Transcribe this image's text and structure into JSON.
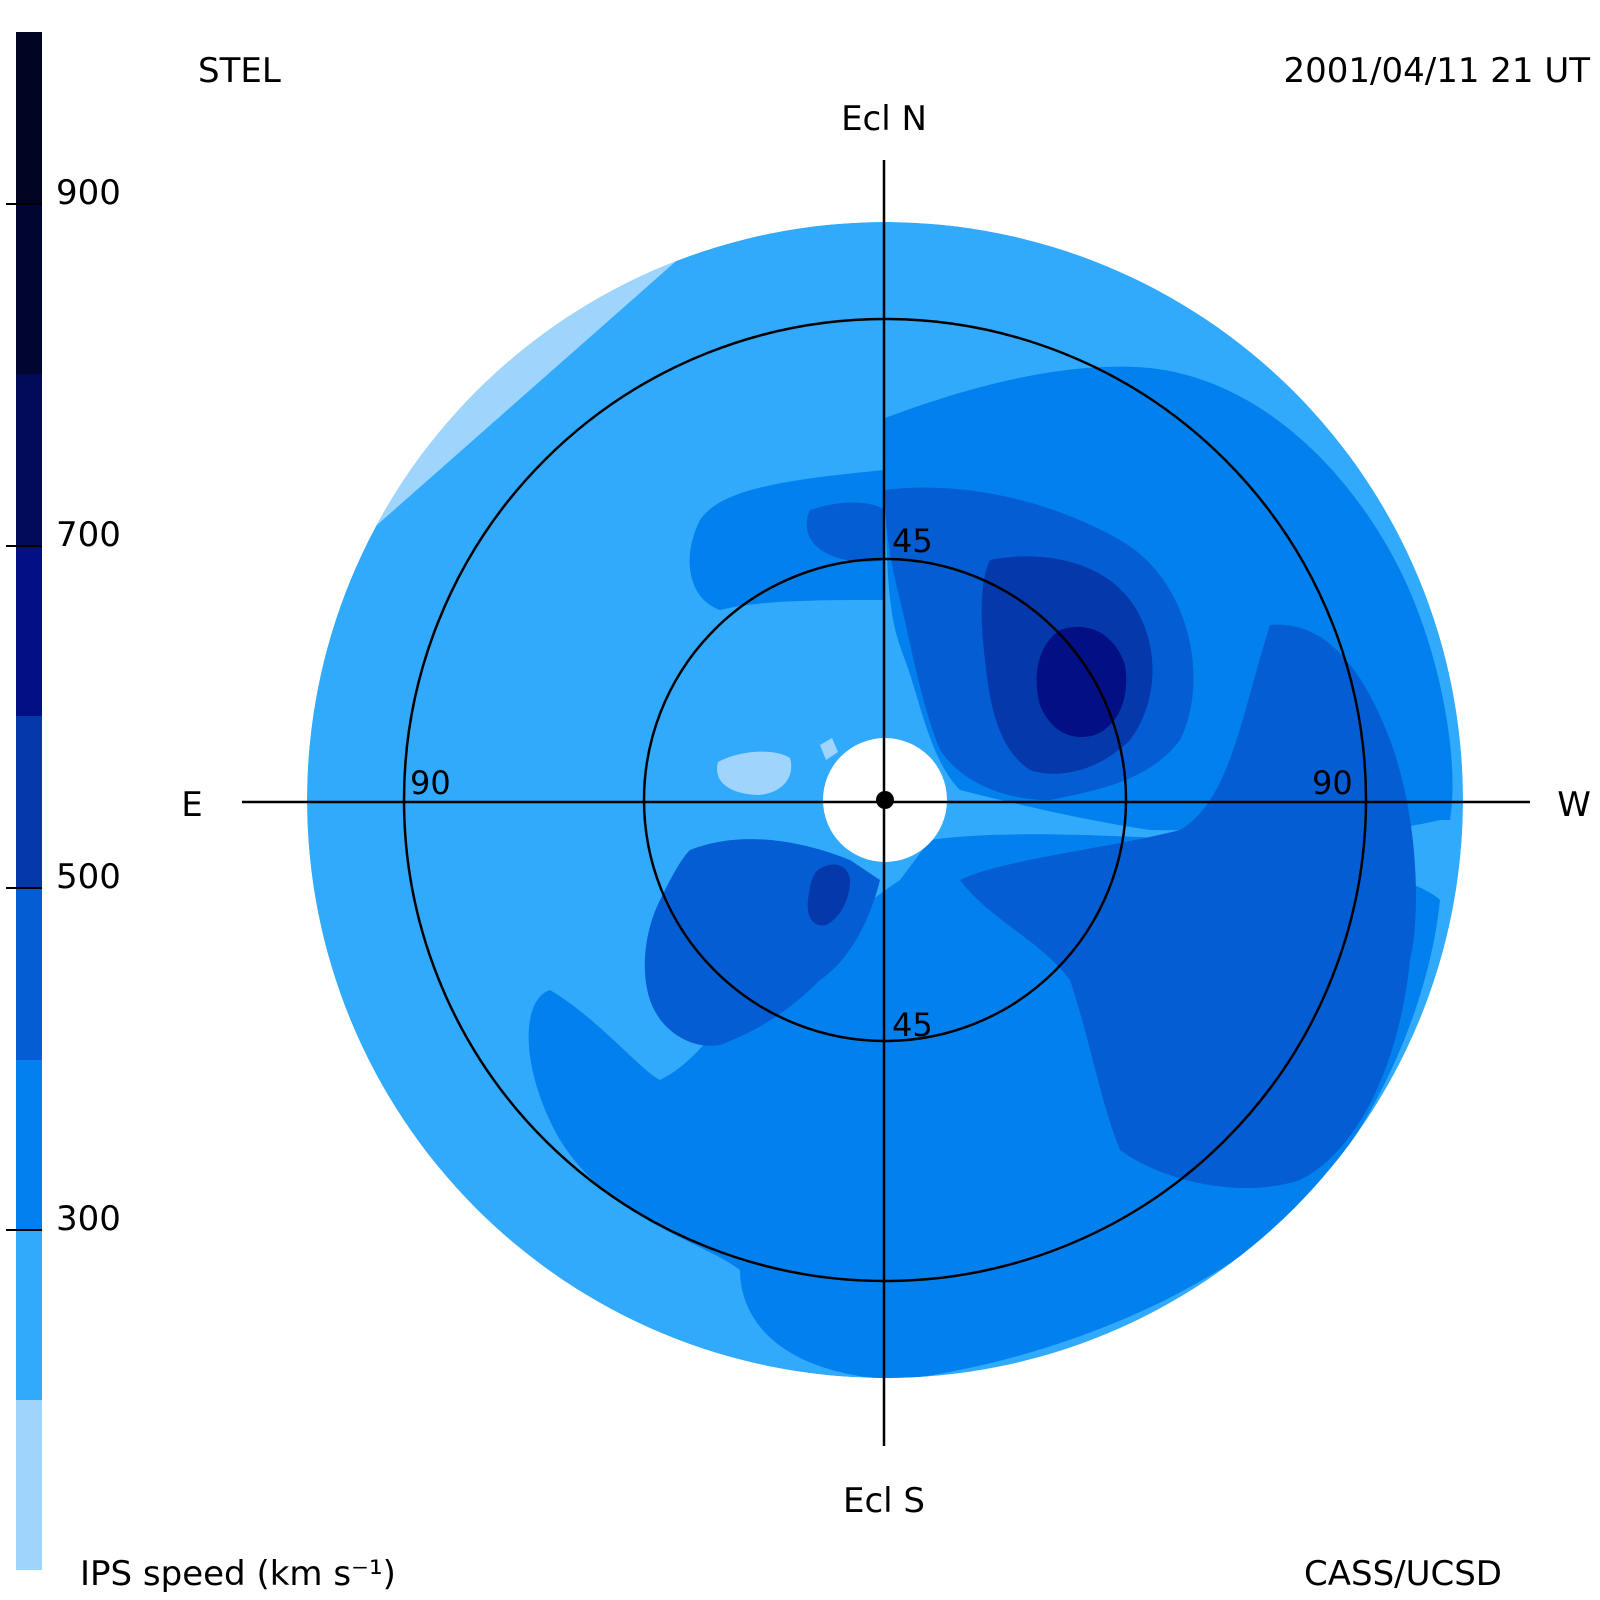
{
  "header": {
    "observatory": "STEL",
    "datetime": "2001/04/11 21 UT"
  },
  "footer": {
    "colorbar_label": "IPS speed (km s⁻¹)",
    "credit": "CASS/UCSD"
  },
  "directions": {
    "north": "Ecl N",
    "south": "Ecl S",
    "east": "E",
    "west": "W"
  },
  "ring_labels": {
    "inner_north": "45",
    "inner_south": "45",
    "outer_east": "90",
    "outer_west": "90"
  },
  "colorbar": {
    "ticks": [
      "900",
      "700",
      "500",
      "300"
    ],
    "bands": [
      {
        "range": "<200",
        "color": "#9fd4fc"
      },
      {
        "range": "200-300",
        "color": "#31aafc"
      },
      {
        "range": "300-400",
        "color": "#0281ee"
      },
      {
        "range": "400-500",
        "color": "#045dd3"
      },
      {
        "range": "500-600",
        "color": "#0438ab"
      },
      {
        "range": "600-700",
        "color": "#030f85"
      },
      {
        "range": "700-800",
        "color": "#020b5a"
      },
      {
        "range": "800-900",
        "color": "#010630"
      },
      {
        "range": ">900",
        "color": "#000422"
      }
    ]
  }
}
